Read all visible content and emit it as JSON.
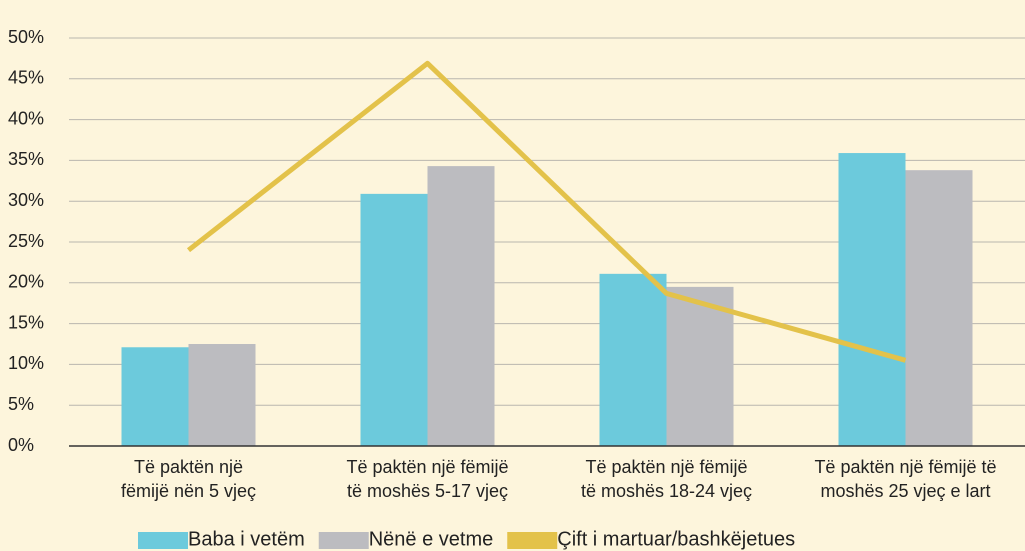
{
  "chart_data": {
    "type": "bar-line",
    "categories": [
      "Të paktën një\nfëmijë nën 5 vjeç",
      "Të paktën një fëmijë\ntë moshës 5-17 vjeç",
      "Të paktën një fëmijë\ntë moshës 18-24 vjeç",
      "Të paktën një fëmijë të\nmoshës 25 vjeç e lart"
    ],
    "series": [
      {
        "name": "Baba i vetëm",
        "type": "bar",
        "color": "#6ccadc",
        "values": [
          12.1,
          30.9,
          21.1,
          35.9
        ]
      },
      {
        "name": "Nënë e vetme",
        "type": "bar",
        "color": "#bcbcc0",
        "values": [
          12.5,
          34.3,
          19.5,
          33.8
        ]
      },
      {
        "name": "Çift i martuar/bashkëjetues",
        "type": "line",
        "color": "#e3c24a",
        "values": [
          24.0,
          46.9,
          18.7,
          10.5
        ]
      }
    ],
    "ylim": [
      0,
      50
    ],
    "yticks": [
      {
        "value": 0,
        "label": "0%"
      },
      {
        "value": 5,
        "label": "5%"
      },
      {
        "value": 10,
        "label": "10%"
      },
      {
        "value": 15,
        "label": "15%"
      },
      {
        "value": 20,
        "label": "20%"
      },
      {
        "value": 25,
        "label": "25%"
      },
      {
        "value": 30,
        "label": "30%"
      },
      {
        "value": 35,
        "label": "35%"
      },
      {
        "value": 40,
        "label": "40%"
      },
      {
        "value": 45,
        "label": "45%"
      },
      {
        "value": 50,
        "label": "50%"
      }
    ],
    "grid": true,
    "legend": "bottom"
  }
}
